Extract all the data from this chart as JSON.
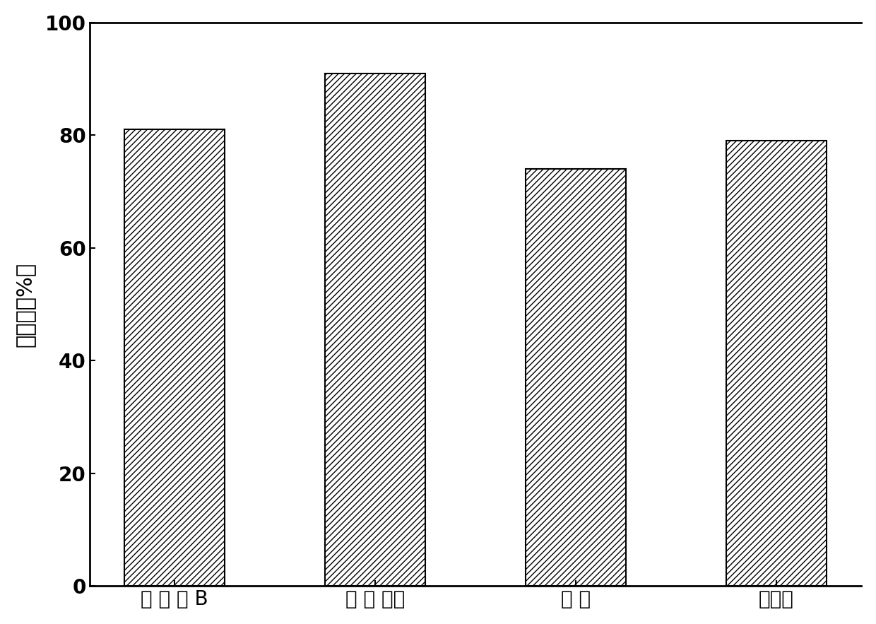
{
  "categories": [
    "罗 丹 明 B",
    "亚 甲 基蓝",
    "苯 酚",
    "砵基苯"
  ],
  "values": [
    81.0,
    91.0,
    74.0,
    79.0
  ],
  "bar_color": "#ffffff",
  "bar_edgecolor": "#000000",
  "hatch": "////",
  "ylabel": "降解率（%）",
  "ylim": [
    0,
    100
  ],
  "yticks": [
    0,
    20,
    40,
    60,
    80,
    100
  ],
  "background_color": "#ffffff",
  "bar_linewidth": 1.5,
  "axis_linewidth": 2.0,
  "ylabel_fontsize": 22,
  "tick_fontsize": 20,
  "xlabel_fontsize": 20
}
